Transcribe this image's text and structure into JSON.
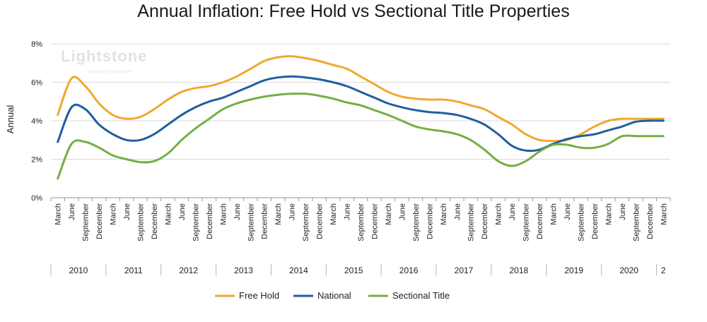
{
  "chart_data": {
    "type": "line",
    "title": "Annual Inflation: Free Hold vs Sectional Title Properties",
    "ylabel": "Annual",
    "xlabel": "",
    "ylim": [
      0,
      8
    ],
    "yticks": [
      "0%",
      "2%",
      "4%",
      "6%",
      "8%"
    ],
    "ytick_values": [
      0,
      2,
      4,
      6,
      8
    ],
    "grid": true,
    "legend_position": "bottom",
    "quarters": [
      "March",
      "June",
      "September",
      "December"
    ],
    "years": [
      "2010",
      "2011",
      "2012",
      "2013",
      "2014",
      "2015",
      "2016",
      "2017",
      "2018",
      "2019",
      "2020",
      "2"
    ],
    "x": [
      "2010-03",
      "2010-06",
      "2010-09",
      "2010-12",
      "2011-03",
      "2011-06",
      "2011-09",
      "2011-12",
      "2012-03",
      "2012-06",
      "2012-09",
      "2012-12",
      "2013-03",
      "2013-06",
      "2013-09",
      "2013-12",
      "2014-03",
      "2014-06",
      "2014-09",
      "2014-12",
      "2015-03",
      "2015-06",
      "2015-09",
      "2015-12",
      "2016-03",
      "2016-06",
      "2016-09",
      "2016-12",
      "2017-03",
      "2017-06",
      "2017-09",
      "2017-12",
      "2018-03",
      "2018-06",
      "2018-09",
      "2018-12",
      "2019-03",
      "2019-06",
      "2019-09",
      "2019-12",
      "2020-03",
      "2020-06",
      "2020-09",
      "2020-12",
      "2021-03"
    ],
    "series": [
      {
        "name": "Free Hold",
        "color": "#F0A830",
        "values": [
          4.3,
          6.2,
          5.8,
          4.9,
          4.3,
          4.1,
          4.2,
          4.6,
          5.1,
          5.5,
          5.7,
          5.8,
          6.0,
          6.3,
          6.7,
          7.1,
          7.3,
          7.35,
          7.25,
          7.1,
          6.9,
          6.7,
          6.3,
          5.9,
          5.5,
          5.25,
          5.15,
          5.1,
          5.1,
          5.0,
          4.8,
          4.6,
          4.2,
          3.8,
          3.3,
          3.0,
          2.95,
          3.0,
          3.3,
          3.7,
          4.0,
          4.1,
          4.1,
          4.1,
          4.1
        ]
      },
      {
        "name": "National",
        "color": "#1F5F9E",
        "values": [
          2.9,
          4.7,
          4.6,
          3.8,
          3.3,
          3.0,
          3.0,
          3.3,
          3.8,
          4.3,
          4.7,
          5.0,
          5.2,
          5.5,
          5.8,
          6.1,
          6.25,
          6.3,
          6.25,
          6.15,
          6.0,
          5.8,
          5.5,
          5.2,
          4.9,
          4.7,
          4.55,
          4.45,
          4.4,
          4.3,
          4.1,
          3.8,
          3.3,
          2.7,
          2.45,
          2.5,
          2.8,
          3.05,
          3.2,
          3.3,
          3.5,
          3.7,
          3.95,
          4.0,
          4.0
        ]
      },
      {
        "name": "Sectional Title",
        "color": "#72B043",
        "values": [
          1.0,
          2.8,
          2.9,
          2.6,
          2.2,
          2.0,
          1.85,
          1.9,
          2.3,
          3.0,
          3.6,
          4.1,
          4.6,
          4.9,
          5.1,
          5.25,
          5.35,
          5.4,
          5.4,
          5.3,
          5.15,
          4.95,
          4.8,
          4.55,
          4.3,
          4.0,
          3.7,
          3.55,
          3.45,
          3.3,
          3.0,
          2.5,
          1.9,
          1.65,
          1.9,
          2.4,
          2.75,
          2.75,
          2.6,
          2.6,
          2.8,
          3.2,
          3.2,
          3.2,
          3.2
        ]
      }
    ],
    "legend": [
      "Free Hold",
      "National",
      "Sectional Title"
    ]
  },
  "watermark": {
    "brand": "Lightstone",
    "tagline": "we simplify the complex"
  }
}
